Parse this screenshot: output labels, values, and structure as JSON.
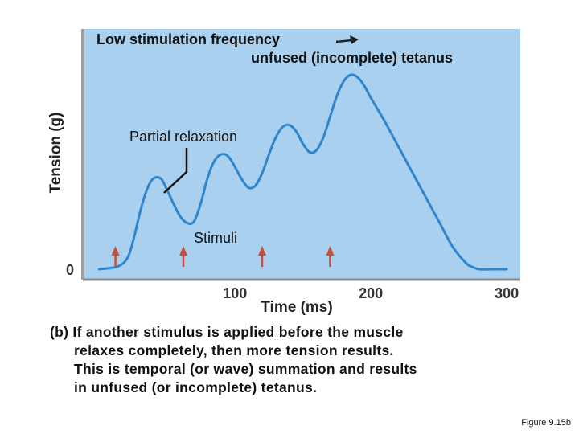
{
  "chart_data": {
    "type": "line",
    "title_line1": "Low stimulation frequency",
    "title_line2": "unfused (incomplete) tetanus",
    "xlabel": "Time (ms)",
    "ylabel": "Tension (g)",
    "x_ticks": [
      "100",
      "200",
      "300"
    ],
    "y_ticks": [
      "0"
    ],
    "xlim": [
      -12,
      310
    ],
    "ylim": [
      -0.05,
      1.15
    ],
    "series": [
      {
        "name": "Tension",
        "x": [
          0,
          12,
          18,
          22,
          26,
          30,
          34,
          38,
          42,
          46,
          50,
          55,
          60,
          65,
          70,
          75,
          80,
          85,
          90,
          95,
          100,
          105,
          110,
          115,
          120,
          125,
          130,
          135,
          140,
          145,
          150,
          155,
          160,
          165,
          170,
          175,
          180,
          185,
          190,
          195,
          200,
          210,
          220,
          230,
          240,
          250,
          260,
          270,
          275,
          280,
          290,
          300
        ],
        "values": [
          0,
          0.01,
          0.03,
          0.07,
          0.16,
          0.27,
          0.36,
          0.42,
          0.44,
          0.43,
          0.38,
          0.31,
          0.25,
          0.22,
          0.23,
          0.32,
          0.44,
          0.52,
          0.55,
          0.54,
          0.49,
          0.43,
          0.39,
          0.4,
          0.46,
          0.55,
          0.63,
          0.68,
          0.69,
          0.66,
          0.6,
          0.56,
          0.57,
          0.63,
          0.73,
          0.83,
          0.9,
          0.93,
          0.92,
          0.88,
          0.82,
          0.71,
          0.59,
          0.47,
          0.35,
          0.23,
          0.11,
          0.03,
          0.01,
          0,
          0,
          0
        ]
      }
    ],
    "stimuli_x": [
      12,
      62,
      120,
      170
    ],
    "annotations": {
      "partial_relaxation": "Partial relaxation",
      "stimuli": "Stimuli"
    },
    "colors": {
      "background": "#a9d0ee",
      "curve": "#2e86cf",
      "arrow": "#c94f3c",
      "axis": "#888888"
    }
  },
  "caption": {
    "line1": "(b) If another stimulus is applied before the muscle",
    "line2": "relaxes completely, then more tension results.",
    "line3": "This is temporal (or wave) summation and results",
    "line4": "in unfused (or incomplete) tetanus."
  },
  "figure_label": "Figure 9.15b"
}
